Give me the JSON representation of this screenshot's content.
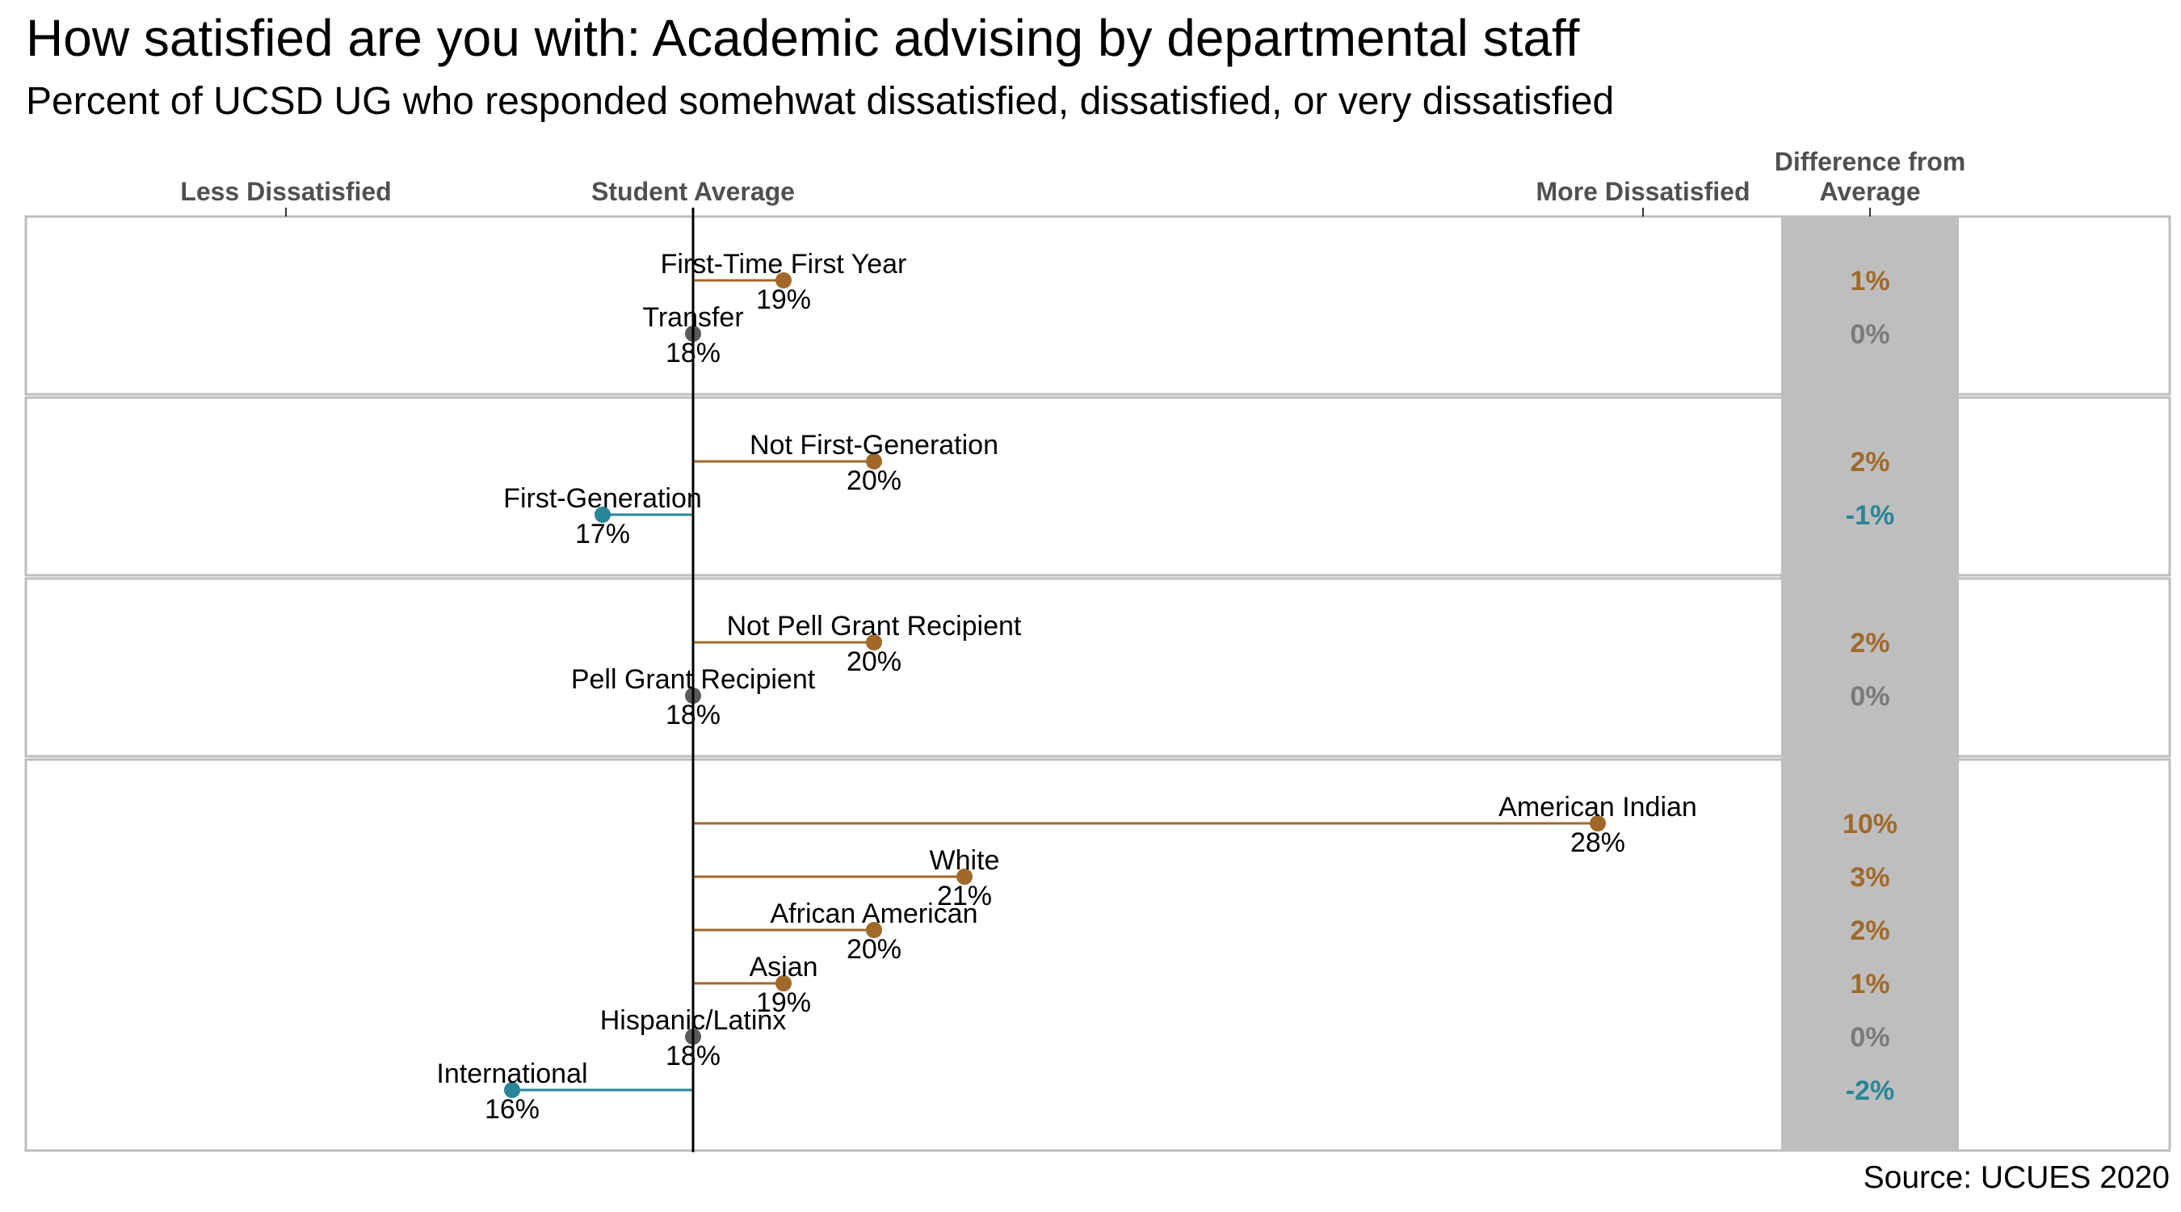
{
  "title": "How satisfied are you with: Academic advising by departmental staff",
  "subtitle": "Percent of UCSD UG who responded somehwat dissatisfied, dissatisfied, or very dissatisfied",
  "source": "Source: UCUES 2020",
  "colors": {
    "higher": "#A0692A",
    "lower": "#2A8597",
    "same": "#595959",
    "diff_panel": "#BEBEBE",
    "panel_border": "#BEBEBE"
  },
  "chart_data": {
    "type": "lollipop",
    "axis_labels": {
      "less": "Less Dissatisfied",
      "average": "Student Average",
      "more": "More Dissatisfied",
      "difference": "Difference from Average"
    },
    "average": 18,
    "xlim": [
      10,
      32
    ],
    "groups": [
      {
        "items": [
          {
            "label": "First-Time First Year",
            "value": 19,
            "value_label": "19%",
            "diff_label": "1%",
            "direction": "higher"
          },
          {
            "label": "Transfer",
            "value": 18,
            "value_label": "18%",
            "diff_label": "0%",
            "direction": "same"
          }
        ]
      },
      {
        "items": [
          {
            "label": "Not First-Generation",
            "value": 20,
            "value_label": "20%",
            "diff_label": "2%",
            "direction": "higher"
          },
          {
            "label": "First-Generation",
            "value": 17,
            "value_label": "17%",
            "diff_label": "-1%",
            "direction": "lower"
          }
        ]
      },
      {
        "items": [
          {
            "label": "Not Pell Grant Recipient",
            "value": 20,
            "value_label": "20%",
            "diff_label": "2%",
            "direction": "higher"
          },
          {
            "label": "Pell Grant Recipient",
            "value": 18,
            "value_label": "18%",
            "diff_label": "0%",
            "direction": "same"
          }
        ]
      },
      {
        "items": [
          {
            "label": "American Indian",
            "value": 28,
            "value_label": "28%",
            "diff_label": "10%",
            "direction": "higher"
          },
          {
            "label": "White",
            "value": 21,
            "value_label": "21%",
            "diff_label": "3%",
            "direction": "higher"
          },
          {
            "label": "African American",
            "value": 20,
            "value_label": "20%",
            "diff_label": "2%",
            "direction": "higher"
          },
          {
            "label": "Asian",
            "value": 19,
            "value_label": "19%",
            "diff_label": "1%",
            "direction": "higher"
          },
          {
            "label": "Hispanic/Latinx",
            "value": 18,
            "value_label": "18%",
            "diff_label": "0%",
            "direction": "same"
          },
          {
            "label": "International",
            "value": 16,
            "value_label": "16%",
            "diff_label": "-2%",
            "direction": "lower"
          }
        ]
      }
    ]
  }
}
